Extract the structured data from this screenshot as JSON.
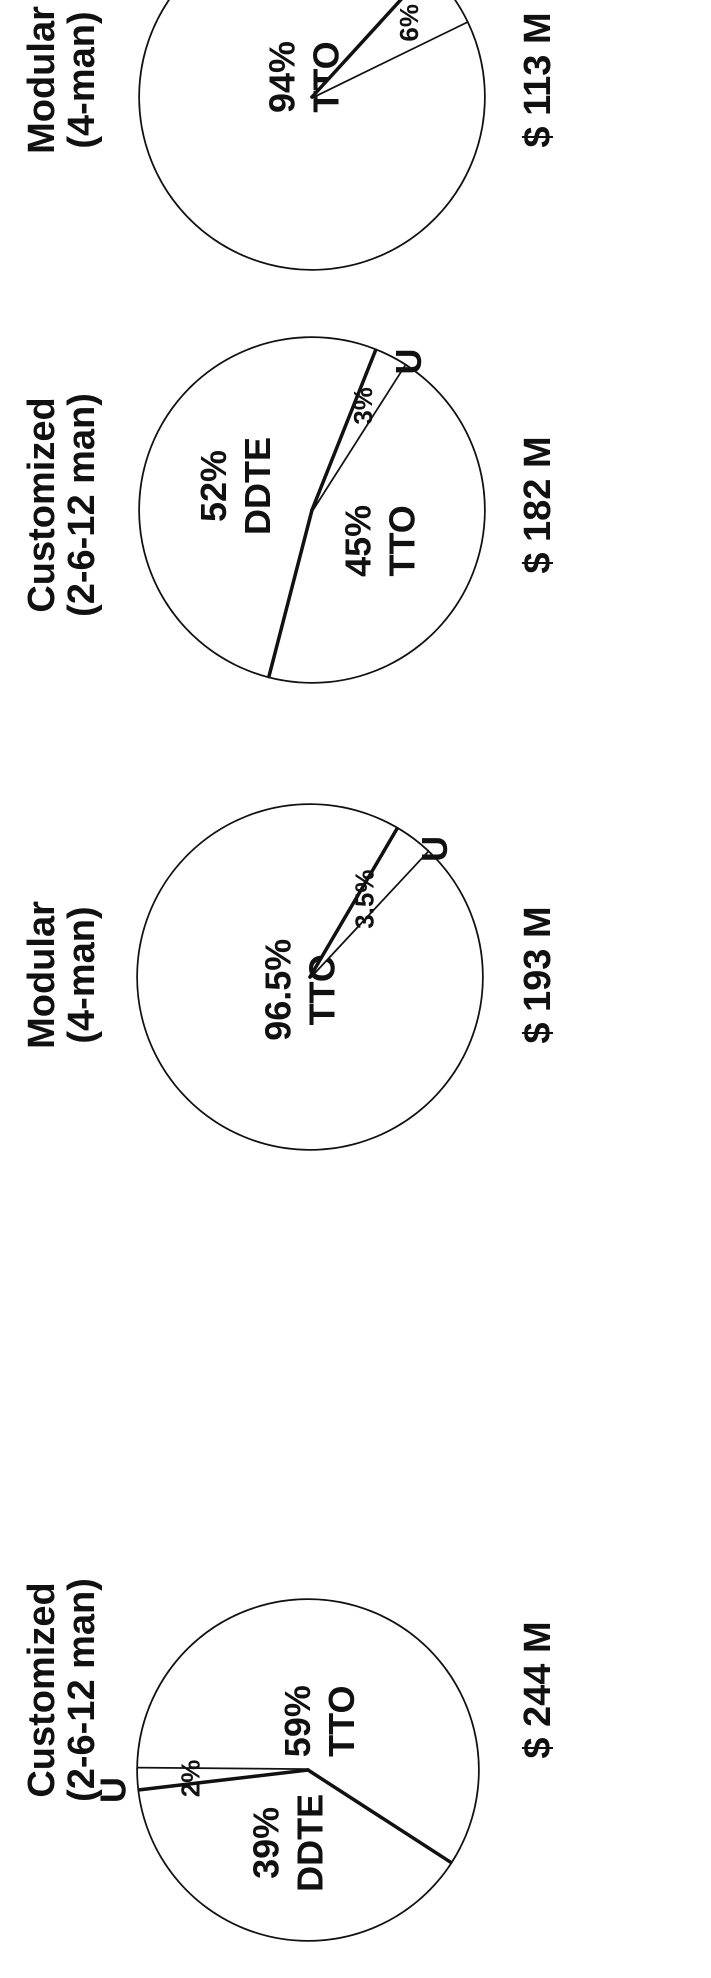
{
  "colors": {
    "ink": "#111111",
    "paper": "#ffffff"
  },
  "chart_data": [
    {
      "type": "pie",
      "title": "Customized",
      "subtitle": "(2-6-12 man)",
      "total_label": "$ 244 M",
      "slices": [
        {
          "label": "TTO",
          "value": 59,
          "value_label": "59%"
        },
        {
          "label": "DDTE",
          "value": 39,
          "value_label": "39%"
        },
        {
          "label": "U",
          "value": 2,
          "value_label": "2%"
        }
      ]
    },
    {
      "type": "pie",
      "title": "Modular",
      "subtitle": "(4-man)",
      "total_label": "$ 193 M",
      "slices": [
        {
          "label": "TTO",
          "value": 96.5,
          "value_label": "96.5%"
        },
        {
          "label": "U",
          "value": 3.5,
          "value_label": "3.5%"
        }
      ]
    },
    {
      "type": "pie",
      "title": "Customized",
      "subtitle": "(2-6-12 man)",
      "total_label": "$ 182 M",
      "slices": [
        {
          "label": "TTO",
          "value": 45,
          "value_label": "45%"
        },
        {
          "label": "DDTE",
          "value": 52,
          "value_label": "52%"
        },
        {
          "label": "U",
          "value": 3,
          "value_label": "3%"
        }
      ]
    },
    {
      "type": "pie",
      "title": "Modular",
      "subtitle": "(4-man)",
      "total_label": "$ 113 M",
      "slices": [
        {
          "label": "TTO",
          "value": 94,
          "value_label": "94%"
        },
        {
          "label": "",
          "value": 6,
          "value_label": "6%"
        }
      ]
    }
  ]
}
